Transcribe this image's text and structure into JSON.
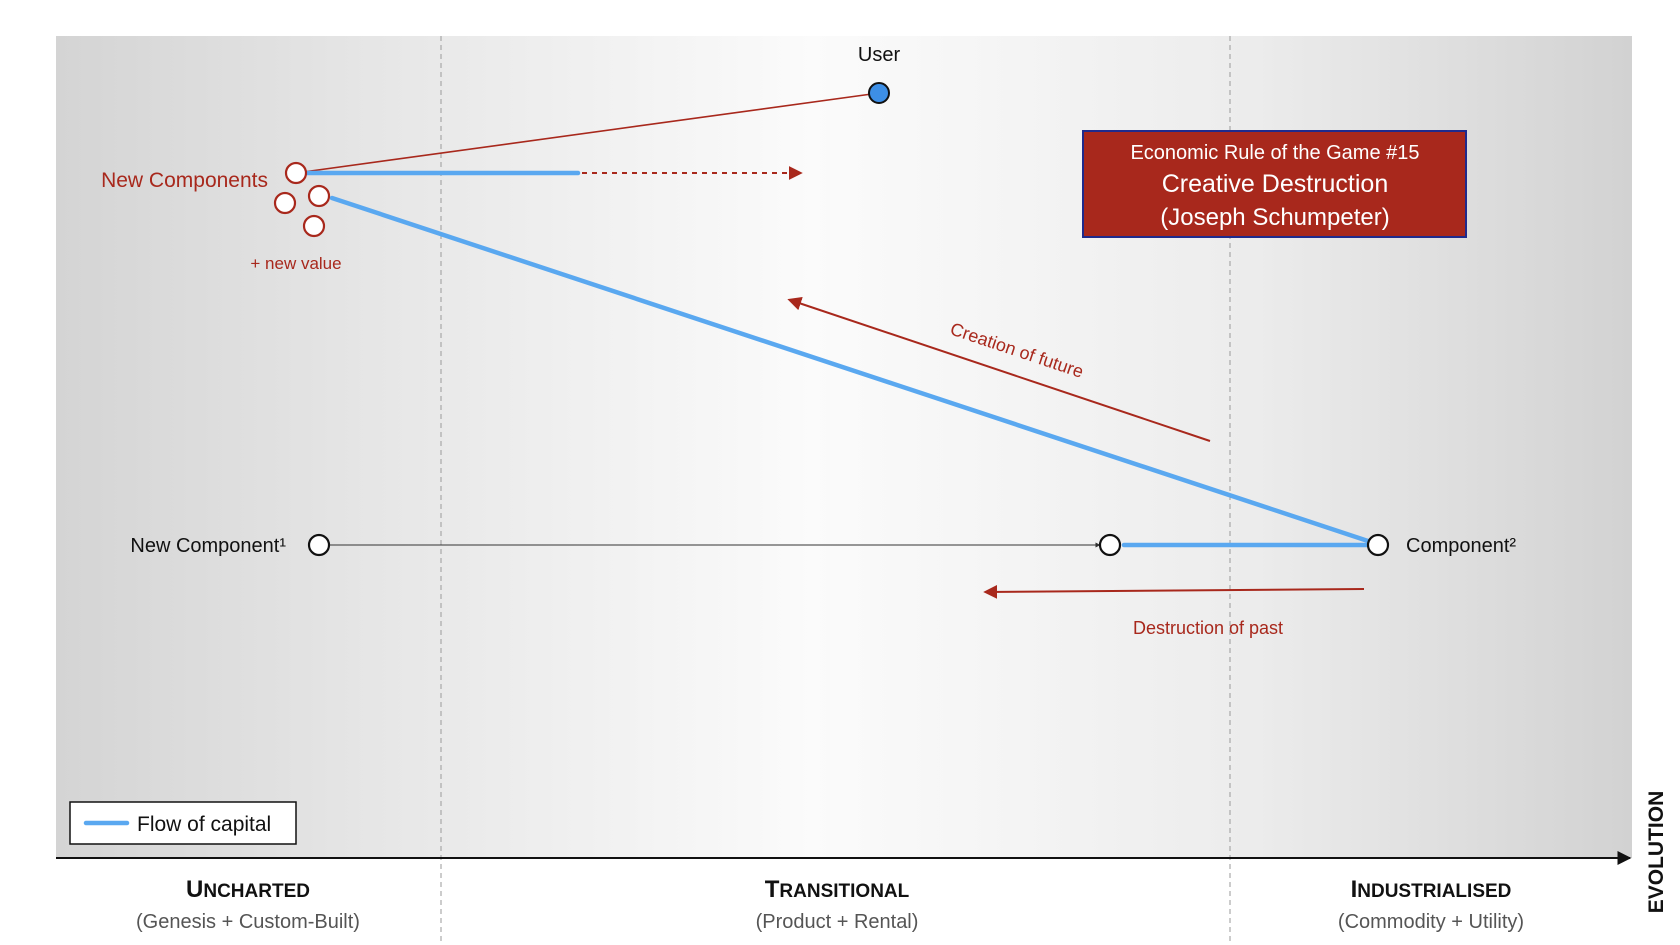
{
  "labels": {
    "user": "User",
    "new_components": "New Components",
    "new_value": "+ new value",
    "new_component_1": "New Component¹",
    "component_2": "Component²",
    "creation_of_future": "Creation of future",
    "destruction_of_past": "Destruction of past"
  },
  "rule_box": {
    "line1": "Economic Rule of the Game #15",
    "line2": "Creative Destruction",
    "line3": "(Joseph Schumpeter)"
  },
  "legend": {
    "label": "Flow of capital"
  },
  "axis": {
    "label": "EVOLUTION",
    "stages": [
      {
        "title_first": "U",
        "title_rest": "NCHARTED",
        "subtitle": "(Genesis + Custom-Built)"
      },
      {
        "title_first": "T",
        "title_rest": "RANSITIONAL",
        "subtitle": "(Product + Rental)"
      },
      {
        "title_first": "I",
        "title_rest": "NDUSTRIALISED",
        "subtitle": "(Commodity + Utility)"
      }
    ]
  },
  "colors": {
    "accent_red": "#a8281c",
    "capital_blue": "#5aa8f0",
    "user_blue": "#3d8fe6",
    "box_border": "#1f2a8c"
  }
}
